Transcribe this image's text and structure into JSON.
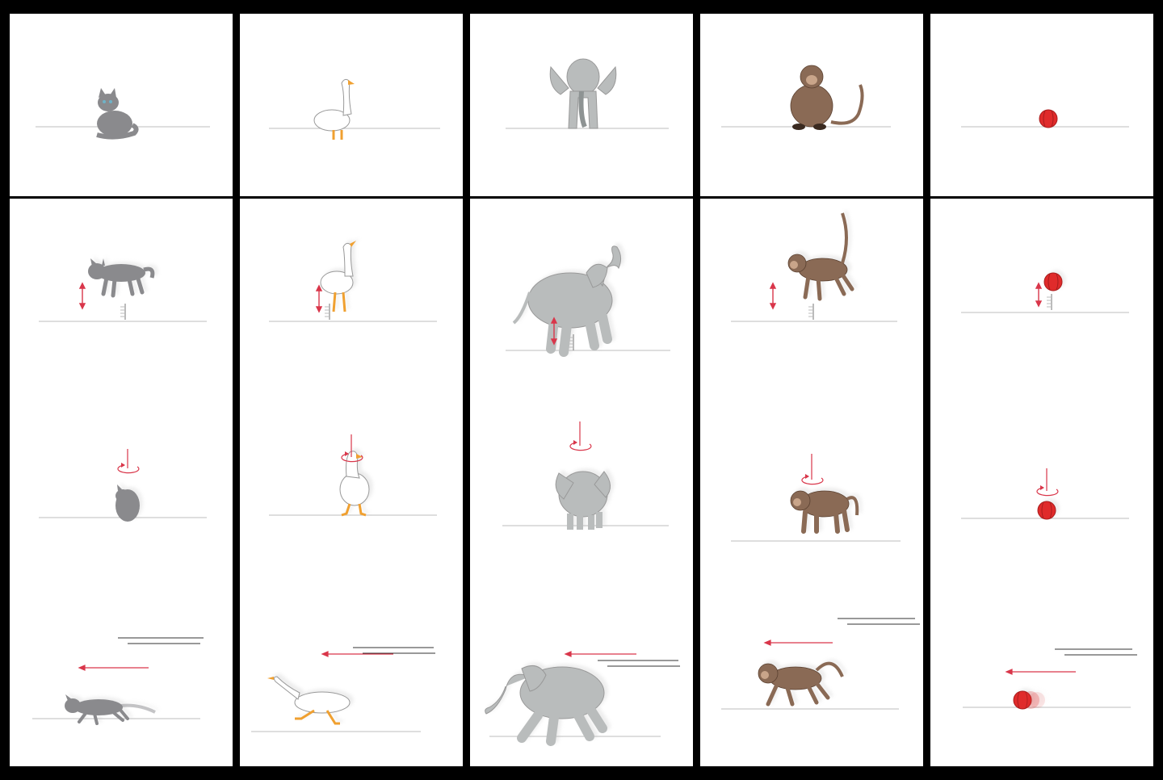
{
  "grid": {
    "columns": [
      {
        "subject": "cat",
        "body_color": "#8a8a8d",
        "accent_color": "#5b6f8a"
      },
      {
        "subject": "goose",
        "body_color": "#ffffff",
        "accent_color": "#f0a030"
      },
      {
        "subject": "elephant",
        "body_color": "#b9bcbc",
        "accent_color": "#8e9393"
      },
      {
        "subject": "monkey",
        "body_color": "#8a6a55",
        "accent_color": "#6b4e3c"
      },
      {
        "subject": "ball",
        "body_color": "#e02b2b",
        "accent_color": "#a91d1d"
      }
    ],
    "rows": [
      "static",
      "jump",
      "spin",
      "run-left"
    ],
    "arrow_color": "#d9364a",
    "ground_color": "#c9c9c9"
  }
}
